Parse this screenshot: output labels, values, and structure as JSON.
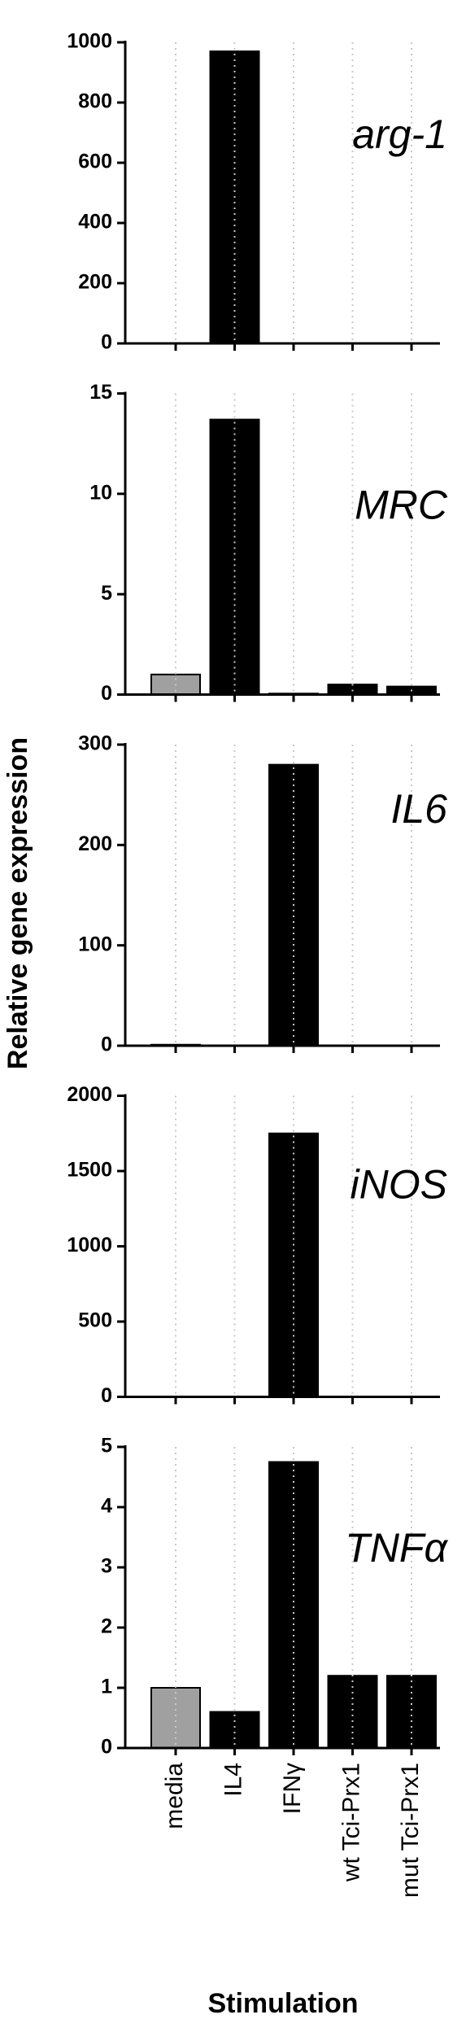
{
  "y_label": "Relative gene expression",
  "chart_data": [
    {
      "type": "bar",
      "title": "arg-1",
      "values": [
        1,
        970,
        0,
        0,
        0
      ],
      "colors": [
        "#a0a0a0",
        "#000000",
        "#000000",
        "#000000",
        "#000000"
      ],
      "ylim": [
        0,
        1000
      ],
      "yticks": [
        0,
        200,
        400,
        600,
        800,
        1000
      ]
    },
    {
      "type": "bar",
      "title": "MRC",
      "values": [
        1,
        13.7,
        0.05,
        0.5,
        0.4
      ],
      "colors": [
        "#a0a0a0",
        "#000000",
        "#000000",
        "#000000",
        "#000000"
      ],
      "ylim": [
        0,
        15
      ],
      "yticks": [
        0,
        5,
        10,
        15
      ]
    },
    {
      "type": "bar",
      "title": "IL6",
      "values": [
        1,
        0,
        280,
        0,
        0
      ],
      "colors": [
        "#a0a0a0",
        "#000000",
        "#000000",
        "#000000",
        "#000000"
      ],
      "ylim": [
        0,
        300
      ],
      "yticks": [
        0,
        100,
        200,
        300
      ]
    },
    {
      "type": "bar",
      "title": "iNOS",
      "values": [
        1,
        0,
        1750,
        0,
        0
      ],
      "colors": [
        "#a0a0a0",
        "#000000",
        "#000000",
        "#000000",
        "#000000"
      ],
      "ylim": [
        0,
        2000
      ],
      "yticks": [
        0,
        500,
        1000,
        1500,
        2000
      ]
    },
    {
      "type": "bar",
      "title": "TNFα",
      "values": [
        1,
        0.6,
        4.75,
        1.2,
        1.2
      ],
      "colors": [
        "#a0a0a0",
        "#000000",
        "#000000",
        "#000000",
        "#000000"
      ],
      "ylim": [
        0,
        5
      ],
      "yticks": [
        0,
        1,
        2,
        3,
        4,
        5
      ],
      "categories": [
        "media",
        "IL4",
        "IFNγ",
        "wt Tci-Prx1",
        "mut Tci-Prx1"
      ],
      "x_label": "Stimulation"
    }
  ]
}
